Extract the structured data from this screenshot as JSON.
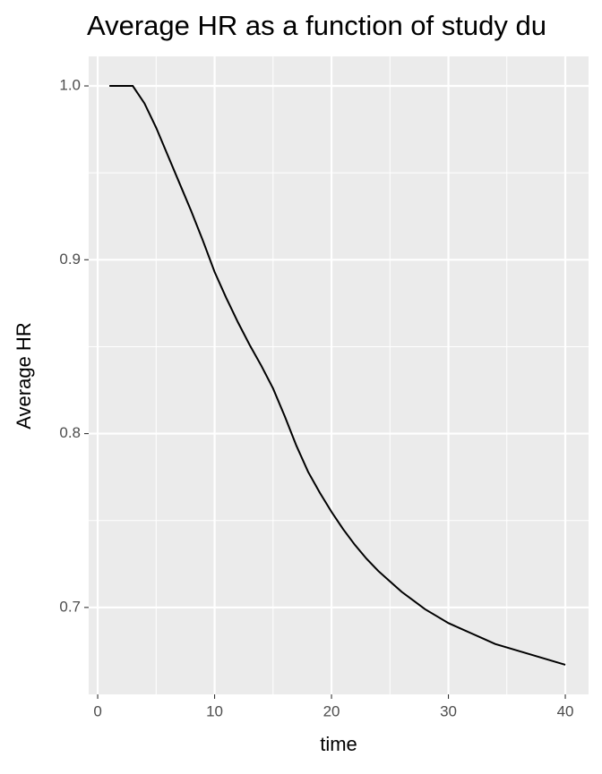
{
  "chart_data": {
    "type": "line",
    "title": "Average HR as a function of study du",
    "x_label": "time",
    "y_label": "Average HR",
    "x": [
      1,
      2,
      3,
      4,
      5,
      6,
      7,
      8,
      9,
      10,
      11,
      12,
      13,
      14,
      15,
      16,
      17,
      18,
      19,
      20,
      21,
      22,
      23,
      24,
      25,
      26,
      27,
      28,
      29,
      30,
      31,
      32,
      33,
      34,
      35,
      36,
      37,
      38,
      39,
      40
    ],
    "series": [
      {
        "color": "#000000",
        "values": [
          1.0,
          1.0,
          1.0,
          0.99,
          0.976,
          0.96,
          0.944,
          0.928,
          0.911,
          0.893,
          0.878,
          0.864,
          0.851,
          0.839,
          0.826,
          0.81,
          0.793,
          0.778,
          0.766,
          0.755,
          0.745,
          0.736,
          0.728,
          0.721,
          0.715,
          0.709,
          0.704,
          0.699,
          0.695,
          0.691,
          0.688,
          0.685,
          0.682,
          0.679,
          0.677,
          0.675,
          0.673,
          0.671,
          0.669,
          0.667
        ]
      }
    ],
    "xlim": [
      -0.77,
      41.99
    ],
    "ylim": [
      0.65,
      1.017
    ],
    "xticks": [
      0,
      10,
      20,
      30,
      40
    ],
    "yticks": [
      0.7,
      0.8,
      0.9,
      {
        "value": 1,
        "label": "1.0"
      }
    ],
    "x_minor_ticks": [
      5,
      15,
      25,
      35
    ],
    "y_minor_ticks": [
      0.75,
      0.85,
      0.95
    ],
    "grid": true
  }
}
